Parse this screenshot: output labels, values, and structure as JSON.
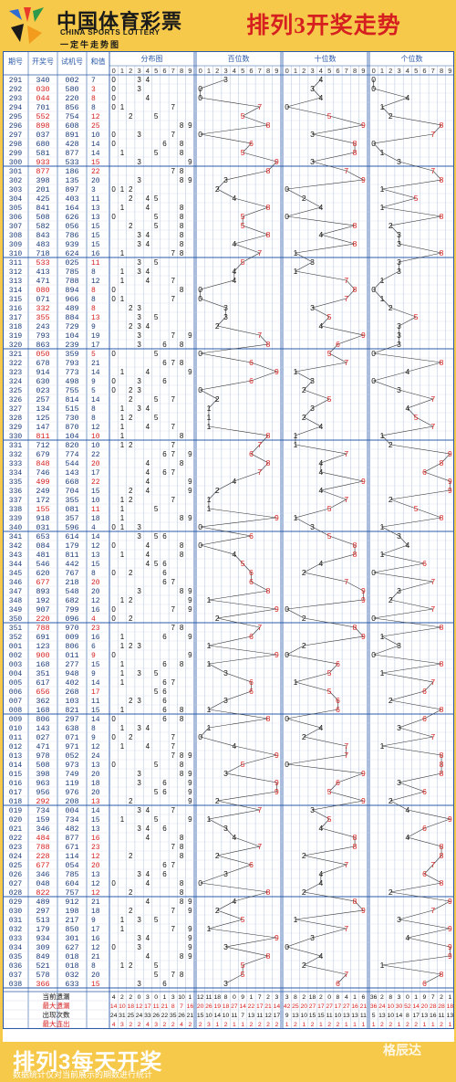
{
  "header": {
    "logo_cn": "中国体育彩票",
    "logo_en": "CHINA SPORTS LOTTERY",
    "logo_slogan": "一定牛走势图",
    "title": "排列3开奖走势"
  },
  "footer": {
    "title": "排列3每天开奖",
    "note": "数据统计仅对当前展示的期数进行统计",
    "watermark": "格辰达"
  },
  "colors": {
    "brand_yellow": "#f6c94a",
    "accent_red": "#d62020",
    "grid_blue": "#2b5aa8",
    "row_alt": "#fffde8"
  },
  "chart_data": {
    "type": "table",
    "title": "排列3开奖走势",
    "columns": [
      "期号",
      "开奖号",
      "试机号",
      "和值",
      "分布图",
      "百位数",
      "十位数",
      "个位数"
    ],
    "digit_labels": [
      "0",
      "1",
      "2",
      "3",
      "4",
      "5",
      "6",
      "7",
      "8",
      "9"
    ],
    "rows": [
      [
        "291",
        "340",
        "002"
      ],
      [
        "292",
        "030",
        "580"
      ],
      [
        "293",
        "044",
        "220"
      ],
      [
        "294",
        "701",
        "856"
      ],
      [
        "295",
        "552",
        "754"
      ],
      [
        "296",
        "898",
        "608"
      ],
      [
        "297",
        "037",
        "891"
      ],
      [
        "298",
        "680",
        "428"
      ],
      [
        "299",
        "581",
        "877"
      ],
      [
        "300",
        "933",
        "533"
      ],
      [
        "301",
        "877",
        "186"
      ],
      [
        "302",
        "398",
        "135"
      ],
      [
        "303",
        "201",
        "897"
      ],
      [
        "304",
        "425",
        "403"
      ],
      [
        "305",
        "841",
        "164"
      ],
      [
        "306",
        "508",
        "626"
      ],
      [
        "307",
        "582",
        "056"
      ],
      [
        "308",
        "843",
        "786"
      ],
      [
        "309",
        "483",
        "939"
      ],
      [
        "310",
        "718",
        "624"
      ],
      [
        "311",
        "533",
        "025"
      ],
      [
        "312",
        "413",
        "785"
      ],
      [
        "313",
        "471",
        "788"
      ],
      [
        "314",
        "080",
        "894"
      ],
      [
        "315",
        "071",
        "966"
      ],
      [
        "316",
        "332",
        "489"
      ],
      [
        "317",
        "355",
        "884"
      ],
      [
        "318",
        "243",
        "729"
      ],
      [
        "319",
        "793",
        "104"
      ],
      [
        "320",
        "863",
        "239"
      ],
      [
        "321",
        "050",
        "359"
      ],
      [
        "322",
        "678",
        "793"
      ],
      [
        "323",
        "914",
        "773"
      ],
      [
        "324",
        "630",
        "498"
      ],
      [
        "325",
        "023",
        "755"
      ],
      [
        "326",
        "257",
        "814"
      ],
      [
        "327",
        "134",
        "515"
      ],
      [
        "328",
        "125",
        "730"
      ],
      [
        "329",
        "147",
        "870"
      ],
      [
        "330",
        "811",
        "104"
      ],
      [
        "331",
        "712",
        "820"
      ],
      [
        "332",
        "679",
        "774"
      ],
      [
        "333",
        "848",
        "544"
      ],
      [
        "334",
        "746",
        "143"
      ],
      [
        "335",
        "499",
        "668"
      ],
      [
        "336",
        "249",
        "704"
      ],
      [
        "337",
        "172",
        "355"
      ],
      [
        "338",
        "155",
        "081"
      ],
      [
        "339",
        "918",
        "357"
      ],
      [
        "340",
        "031",
        "596"
      ],
      [
        "341",
        "653",
        "614"
      ],
      [
        "342",
        "084",
        "179"
      ],
      [
        "343",
        "481",
        "811"
      ],
      [
        "344",
        "546",
        "442"
      ],
      [
        "345",
        "620",
        "767"
      ],
      [
        "346",
        "677",
        "218"
      ],
      [
        "347",
        "893",
        "548"
      ],
      [
        "348",
        "192",
        "682"
      ],
      [
        "349",
        "907",
        "799"
      ],
      [
        "350",
        "220",
        "096"
      ],
      [
        "351",
        "788",
        "970"
      ],
      [
        "352",
        "691",
        "009"
      ],
      [
        "001",
        "123",
        "806"
      ],
      [
        "002",
        "900",
        "011"
      ],
      [
        "003",
        "168",
        "277"
      ],
      [
        "004",
        "351",
        "948"
      ],
      [
        "005",
        "617",
        "402"
      ],
      [
        "006",
        "656",
        "268"
      ],
      [
        "007",
        "362",
        "103"
      ],
      [
        "008",
        "168",
        "821"
      ],
      [
        "009",
        "806",
        "297"
      ],
      [
        "010",
        "143",
        "638"
      ],
      [
        "011",
        "027",
        "071"
      ],
      [
        "012",
        "471",
        "971"
      ],
      [
        "013",
        "978",
        "052"
      ],
      [
        "014",
        "508",
        "973"
      ],
      [
        "015",
        "398",
        "749"
      ],
      [
        "016",
        "963",
        "119"
      ],
      [
        "017",
        "956",
        "976"
      ],
      [
        "018",
        "292",
        "208"
      ],
      [
        "019",
        "734",
        "004"
      ],
      [
        "020",
        "159",
        "734"
      ],
      [
        "021",
        "346",
        "482"
      ],
      [
        "022",
        "484",
        "877"
      ],
      [
        "023",
        "788",
        "671"
      ],
      [
        "024",
        "228",
        "114"
      ],
      [
        "025",
        "677",
        "054"
      ],
      [
        "026",
        "346",
        "785"
      ],
      [
        "027",
        "048",
        "604"
      ],
      [
        "028",
        "822",
        "757"
      ],
      [
        "029",
        "489",
        "912"
      ],
      [
        "030",
        "297",
        "198"
      ],
      [
        "031",
        "513",
        "217"
      ],
      [
        "032",
        "179",
        "850"
      ],
      [
        "033",
        "934",
        "301"
      ],
      [
        "034",
        "309",
        "627"
      ],
      [
        "035",
        "849",
        "018"
      ],
      [
        "036",
        "521",
        "018"
      ],
      [
        "037",
        "578",
        "032"
      ],
      [
        "038",
        "366",
        "633"
      ]
    ],
    "stats_labels": [
      "当前遗漏",
      "最大遗漏",
      "出现次数",
      "最大连出"
    ],
    "stats_colors": [
      "#111111",
      "#d62020",
      "#111111",
      "#d62020"
    ],
    "stats_values": [
      [
        4,
        2,
        2,
        0,
        3,
        0,
        1,
        3,
        10,
        1,
        12,
        11,
        18,
        8,
        0,
        9,
        1,
        7,
        2,
        3,
        3,
        8,
        2,
        18,
        2,
        0,
        8,
        4,
        1,
        6,
        36,
        2,
        8,
        3,
        0,
        1,
        9,
        7,
        2,
        1
      ],
      [
        14,
        10,
        18,
        12,
        17,
        11,
        21,
        8,
        7,
        16,
        20,
        26,
        19,
        18,
        27,
        14,
        22,
        17,
        21,
        14,
        42,
        25,
        20,
        27,
        17,
        27,
        17,
        27,
        16,
        21,
        36,
        24,
        10,
        30,
        52,
        14,
        20,
        28,
        28,
        18
      ],
      [
        24,
        31,
        25,
        24,
        33,
        26,
        22,
        35,
        26,
        21,
        15,
        10,
        14,
        10,
        11,
        7,
        13,
        11,
        12,
        17,
        9,
        13,
        10,
        15,
        15,
        11,
        10,
        13,
        13,
        11,
        5,
        13,
        10,
        14,
        8,
        17,
        13,
        16,
        11,
        13
      ],
      [
        4,
        3,
        2,
        2,
        4,
        3,
        2,
        2,
        4,
        2,
        2,
        3,
        1,
        2,
        1,
        1,
        2,
        2,
        2,
        2,
        1,
        2,
        1,
        2,
        1,
        2,
        2,
        1,
        1,
        1,
        1,
        2,
        2,
        1,
        2,
        2,
        1,
        1,
        2,
        1
      ]
    ]
  }
}
